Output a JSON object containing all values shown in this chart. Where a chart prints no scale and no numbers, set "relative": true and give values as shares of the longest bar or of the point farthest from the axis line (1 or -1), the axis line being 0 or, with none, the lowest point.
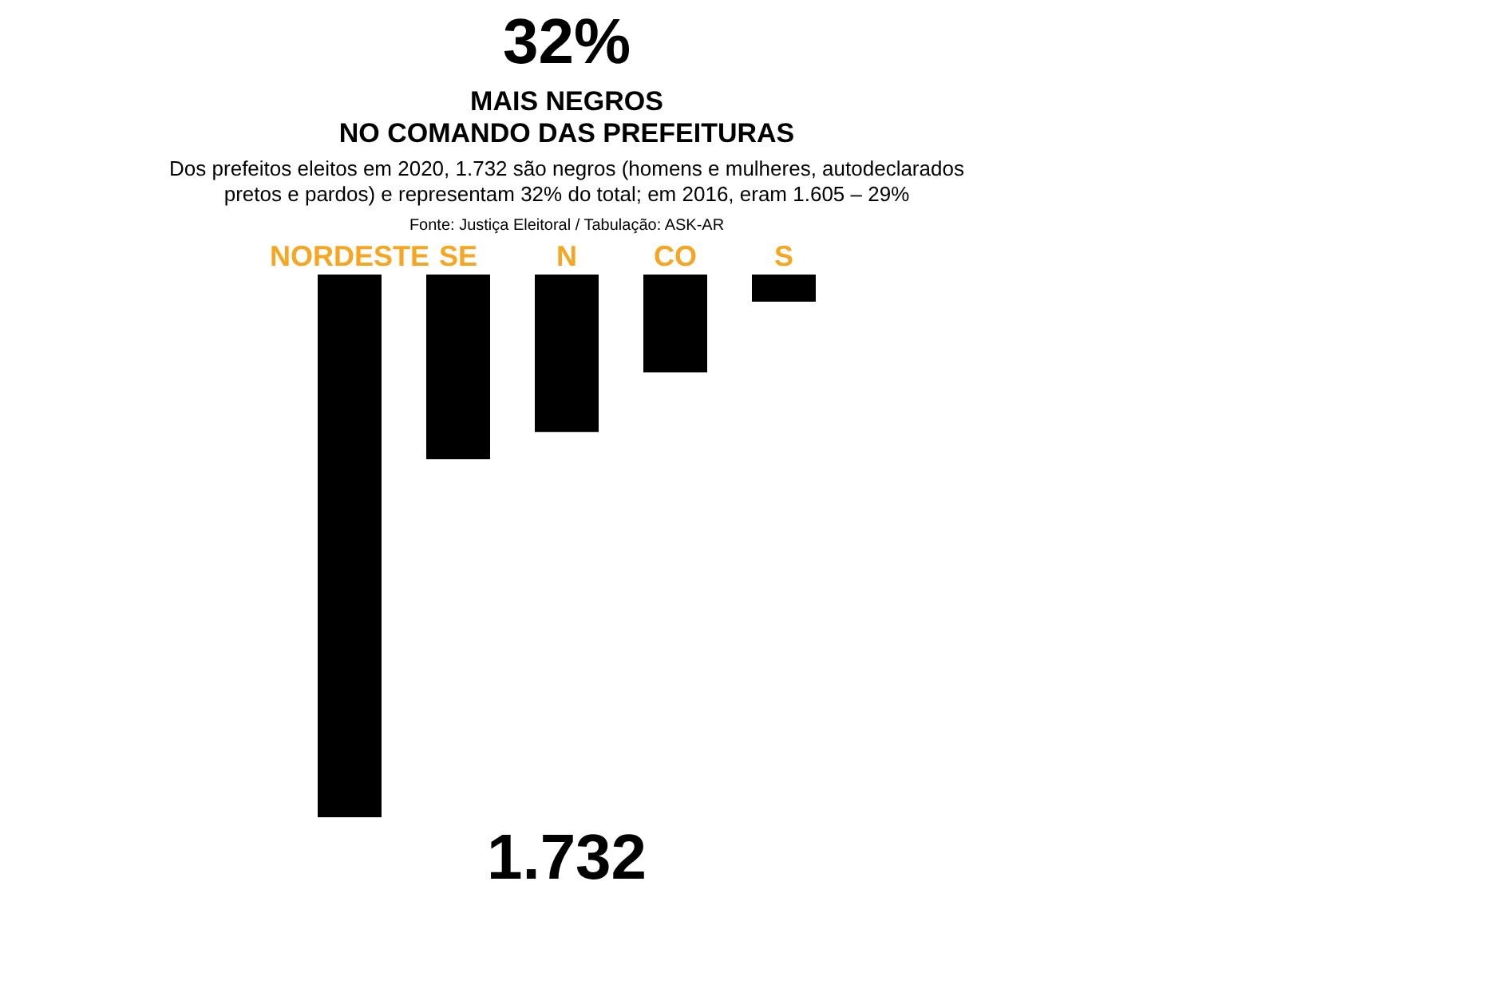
{
  "chart_data": {
    "type": "bar",
    "title": [
      "MAIS NEGROS",
      "NO COMANDO DAS PREFEITURAS"
    ],
    "subtitle": [
      "Dos prefeitos eleitos em 2020, 1.732 são negros (homens e mulheres, autodeclarados",
      "pretos e pardos) e representam 32% do total;  em 2016, eram 1.605 – 29%"
    ],
    "categories": [
      "NORDESTE",
      "SE",
      "N",
      "CO",
      "S"
    ],
    "values": [
      -1,
      -0.34,
      -0.29,
      -0.18,
      -0.05
    ],
    "relative": true,
    "color": "#000000",
    "annotations": [
      "32%",
      "Fonte: Justiça Eleitoral / Tabulação: ASK-AR",
      "1.732"
    ],
    "grid": false
  }
}
